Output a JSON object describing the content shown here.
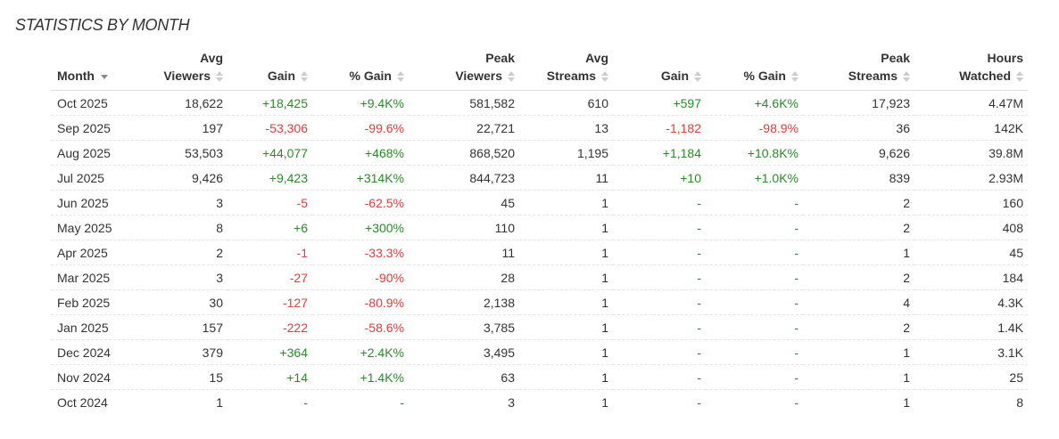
{
  "title": "STATISTICS BY MONTH",
  "colors": {
    "positive": "#2a8a2a",
    "negative": "#e03c3c"
  },
  "columns": [
    {
      "line1": "",
      "line2": "Month",
      "sort": "desc"
    },
    {
      "line1": "Avg",
      "line2": "Viewers",
      "sort": "none"
    },
    {
      "line1": "",
      "line2": "Gain",
      "sort": "none"
    },
    {
      "line1": "",
      "line2": "% Gain",
      "sort": "none"
    },
    {
      "line1": "Peak",
      "line2": "Viewers",
      "sort": "none"
    },
    {
      "line1": "Avg",
      "line2": "Streams",
      "sort": "none"
    },
    {
      "line1": "",
      "line2": "Gain",
      "sort": "none"
    },
    {
      "line1": "",
      "line2": "% Gain",
      "sort": "none"
    },
    {
      "line1": "Peak",
      "line2": "Streams",
      "sort": "none"
    },
    {
      "line1": "Hours",
      "line2": "Watched",
      "sort": "none"
    }
  ],
  "rows": [
    [
      "Oct 2025",
      "18,622",
      "+18,425",
      "+9.4K%",
      "581,582",
      "610",
      "+597",
      "+4.6K%",
      "17,923",
      "4.47M"
    ],
    [
      "Sep 2025",
      "197",
      "-53,306",
      "-99.6%",
      "22,721",
      "13",
      "-1,182",
      "-98.9%",
      "36",
      "142K"
    ],
    [
      "Aug 2025",
      "53,503",
      "+44,077",
      "+468%",
      "868,520",
      "1,195",
      "+1,184",
      "+10.8K%",
      "9,626",
      "39.8M"
    ],
    [
      "Jul 2025",
      "9,426",
      "+9,423",
      "+314K%",
      "844,723",
      "11",
      "+10",
      "+1.0K%",
      "839",
      "2.93M"
    ],
    [
      "Jun 2025",
      "3",
      "-5",
      "-62.5%",
      "45",
      "1",
      "-",
      "-",
      "2",
      "160"
    ],
    [
      "May 2025",
      "8",
      "+6",
      "+300%",
      "110",
      "1",
      "-",
      "-",
      "2",
      "408"
    ],
    [
      "Apr 2025",
      "2",
      "-1",
      "-33.3%",
      "11",
      "1",
      "-",
      "-",
      "1",
      "45"
    ],
    [
      "Mar 2025",
      "3",
      "-27",
      "-90%",
      "28",
      "1",
      "-",
      "-",
      "2",
      "184"
    ],
    [
      "Feb 2025",
      "30",
      "-127",
      "-80.9%",
      "2,138",
      "1",
      "-",
      "-",
      "4",
      "4.3K"
    ],
    [
      "Jan 2025",
      "157",
      "-222",
      "-58.6%",
      "3,785",
      "1",
      "-",
      "-",
      "2",
      "1.4K"
    ],
    [
      "Dec 2024",
      "379",
      "+364",
      "+2.4K%",
      "3,495",
      "1",
      "-",
      "-",
      "1",
      "3.1K"
    ],
    [
      "Nov 2024",
      "15",
      "+14",
      "+1.4K%",
      "63",
      "1",
      "-",
      "-",
      "1",
      "25"
    ],
    [
      "Oct 2024",
      "1",
      "-",
      "-",
      "3",
      "1",
      "-",
      "-",
      "1",
      "8"
    ]
  ]
}
